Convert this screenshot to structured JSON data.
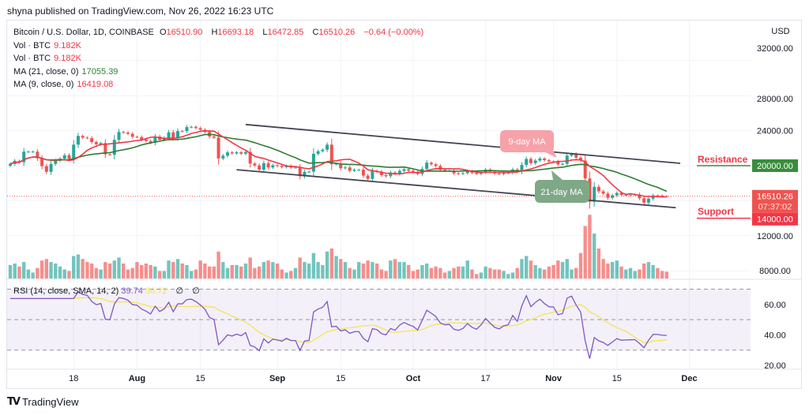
{
  "publisher_line": "shyna published on TradingView.com, Nov 26, 2022 16:23 UTC",
  "legend": {
    "symbol": "Bitcoin / U.S. Dollar, 1D, COINBASE",
    "open_label": "O",
    "open": "16510.90",
    "high_label": "H",
    "high": "16693.18",
    "low_label": "L",
    "low": "16472.85",
    "close_label": "C",
    "close": "16510.26",
    "change": "−0.64 (−0.00%)",
    "vol1_label": "Vol · BTC",
    "vol1": "9.182K",
    "vol2_label": "Vol · BTC",
    "vol2": "9.182K",
    "ma21_label": "MA (21, close, 0)",
    "ma21": "17055.39",
    "ma9_label": "MA (9, close, 0)",
    "ma9": "16419.08"
  },
  "rsi_legend": {
    "label": "RSI (14, close, SMA, 14, 2)",
    "rsi": "39.74",
    "sma": "36.72",
    "extra1": "∅",
    "extra2": "∅"
  },
  "footer": {
    "brand": "TradingView",
    "logo_text": "TV"
  },
  "colors": {
    "up": "#26a69a",
    "down": "#ef5350",
    "ma21": "#2e7d32",
    "ma9": "#f23645",
    "rsi": "#7e57c2",
    "rsi_sma": "#f5e35a",
    "resistance": "#388e3c",
    "support": "#f23645"
  },
  "chart_data": {
    "type": "candlestick",
    "start_date": "2022-07-04",
    "closes": [
      20200,
      20550,
      20400,
      21600,
      21600,
      21600,
      20850,
      19950,
      19300,
      20200,
      20580,
      20800,
      21200,
      20780,
      22400,
      23400,
      23200,
      23150,
      22700,
      22450,
      22580,
      21300,
      21250,
      22950,
      23850,
      23780,
      23640,
      23300,
      23270,
      22980,
      22820,
      22620,
      23320,
      22950,
      23180,
      23810,
      23160,
      23950,
      23940,
      24400,
      24440,
      24300,
      24100,
      23850,
      23340,
      23200,
      20830,
      21140,
      21520,
      21400,
      21530,
      21370,
      21560,
      20240,
      20030,
      19550,
      20280,
      19800,
      20050,
      19960,
      19830,
      19990,
      19790,
      19790,
      18790,
      19290,
      19320,
      21360,
      21650,
      21820,
      22400,
      20170,
      20230,
      19700,
      19800,
      19420,
      19540,
      19540,
      18870,
      18490,
      19410,
      19300,
      18920,
      18800,
      19220,
      19080,
      19410,
      19590,
      19430,
      19310,
      19060,
      19630,
      20340,
      20160,
      19960,
      19530,
      19420,
      19440,
      19130,
      19060,
      19150,
      19380,
      19180,
      19070,
      19260,
      19550,
      19330,
      19120,
      19040,
      19160,
      19200,
      19570,
      19330,
      20090,
      20770,
      20290,
      20590,
      20820,
      20630,
      20490,
      20480,
      20150,
      20210,
      21150,
      21300,
      20920,
      20590,
      18540,
      15880,
      17590,
      17070,
      16810,
      16330,
      16610,
      16890,
      16660,
      16680,
      16690,
      16700,
      16280,
      15780,
      16230,
      16600,
      16590,
      16520,
      16510.26
    ],
    "volume_k": [
      18,
      20,
      16,
      22,
      12,
      8,
      14,
      24,
      26,
      22,
      20,
      16,
      12,
      10,
      30,
      32,
      26,
      22,
      20,
      14,
      12,
      22,
      20,
      24,
      28,
      20,
      12,
      14,
      22,
      18,
      20,
      18,
      16,
      10,
      10,
      24,
      22,
      26,
      20,
      18,
      10,
      12,
      24,
      20,
      16,
      16,
      36,
      22,
      14,
      18,
      18,
      16,
      20,
      28,
      14,
      16,
      22,
      24,
      22,
      20,
      12,
      8,
      10,
      14,
      28,
      22,
      20,
      34,
      22,
      18,
      36,
      40,
      30,
      26,
      22,
      14,
      12,
      22,
      20,
      24,
      22,
      20,
      12,
      10,
      24,
      26,
      22,
      22,
      18,
      10,
      12,
      18,
      20,
      14,
      16,
      14,
      8,
      10,
      14,
      16,
      16,
      24,
      12,
      6,
      8,
      16,
      14,
      12,
      12,
      10,
      6,
      8,
      14,
      26,
      30,
      24,
      18,
      14,
      12,
      16,
      18,
      24,
      22,
      26,
      12,
      14,
      34,
      70,
      85,
      60,
      40,
      26,
      20,
      22,
      24,
      16,
      12,
      14,
      10,
      12,
      20,
      22,
      18,
      14,
      10,
      9.182
    ],
    "moving_averages": [
      21,
      9
    ],
    "rsi_period": 14,
    "rsi_sma_period": 14,
    "price_axis": {
      "unit": "USD",
      "ticks": [
        "32000.00",
        "28000.00",
        "24000.00",
        "20000.00",
        "12000.00",
        "8000.00"
      ],
      "tick_values": [
        32000,
        28000,
        24000,
        20000,
        12000,
        8000
      ]
    },
    "rsi_axis": {
      "ticks": [
        "60.00",
        "40.00",
        "20.00"
      ],
      "tick_values": [
        60,
        40,
        20
      ],
      "band": [
        30,
        70
      ]
    },
    "time_axis": [
      {
        "label": "18",
        "date": "2022-07-18",
        "bold": false
      },
      {
        "label": "Aug",
        "date": "2022-08-01",
        "bold": true
      },
      {
        "label": "15",
        "date": "2022-08-15",
        "bold": false
      },
      {
        "label": "Sep",
        "date": "2022-09-01",
        "bold": true
      },
      {
        "label": "15",
        "date": "2022-09-15",
        "bold": false
      },
      {
        "label": "Oct",
        "date": "2022-10-01",
        "bold": true
      },
      {
        "label": "17",
        "date": "2022-10-17",
        "bold": false
      },
      {
        "label": "Nov",
        "date": "2022-11-01",
        "bold": true
      },
      {
        "label": "15",
        "date": "2022-11-15",
        "bold": false
      },
      {
        "label": "Dec",
        "date": "2022-12-01",
        "bold": true
      }
    ],
    "price_labels": {
      "last": "16510.26",
      "countdown": "07:37:02",
      "resistance": "20000.00",
      "support": "14000.00"
    },
    "annotations": {
      "resistance_text": "Resistance",
      "resistance_price": 20000,
      "support_text": "Support",
      "support_price": 14000,
      "ma9_callout": "9-day MA",
      "ma21_callout": "21-day MA"
    },
    "channel": {
      "upper": [
        {
          "date": "2022-08-25",
          "price": 24700
        },
        {
          "date": "2022-11-29",
          "price": 20270
        }
      ],
      "lower": [
        {
          "date": "2022-08-23",
          "price": 19540
        },
        {
          "date": "2022-11-28",
          "price": 15200
        }
      ]
    }
  }
}
